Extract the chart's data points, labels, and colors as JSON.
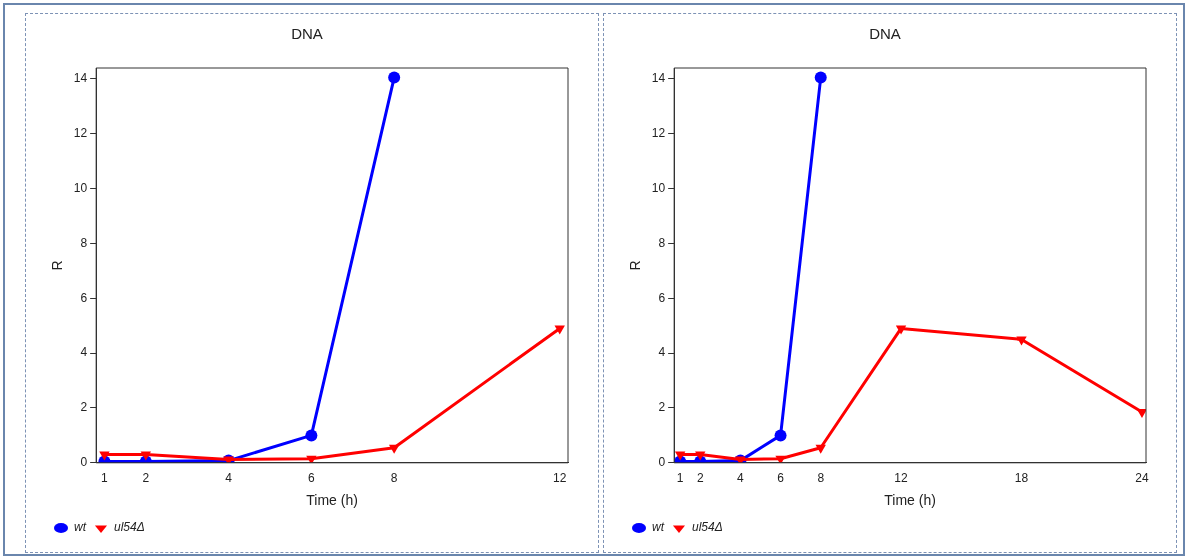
{
  "chart_data": [
    {
      "type": "line",
      "title": "DNA",
      "xlabel": "Time (h)",
      "ylabel": "R",
      "x": [
        1,
        2,
        4,
        6,
        8,
        12
      ],
      "xlim": [
        0.8,
        12.2
      ],
      "xticks": [
        1,
        2,
        4,
        6,
        8,
        12
      ],
      "ylim": [
        0,
        14.4
      ],
      "yticks": [
        0,
        2,
        4,
        6,
        8,
        10,
        12,
        14
      ],
      "grid": false,
      "legend": "bottom left",
      "series": [
        {
          "name": "wt",
          "color": "#0000ff",
          "marker": "circle",
          "values": [
            0.05,
            0.05,
            0.08,
            1.0,
            14.05,
            null
          ]
        },
        {
          "name": "ul54Δ",
          "color": "#ff0000",
          "marker": "triangle-down",
          "values": [
            0.3,
            0.3,
            0.12,
            0.15,
            0.55,
            4.9
          ]
        }
      ]
    },
    {
      "type": "line",
      "title": "DNA",
      "xlabel": "Time (h)",
      "ylabel": "R",
      "x": [
        1,
        2,
        4,
        6,
        8,
        12,
        18,
        24
      ],
      "xlim": [
        0.7,
        24.2
      ],
      "xticks": [
        1,
        2,
        4,
        6,
        8,
        12,
        18,
        24
      ],
      "ylim": [
        0,
        14.4
      ],
      "yticks": [
        0,
        2,
        4,
        6,
        8,
        10,
        12,
        14
      ],
      "grid": false,
      "legend": "bottom left",
      "series": [
        {
          "name": "wt",
          "color": "#0000ff",
          "marker": "circle",
          "values": [
            0.05,
            0.05,
            0.08,
            1.0,
            14.05,
            null,
            null,
            null
          ]
        },
        {
          "name": "ul54Δ",
          "color": "#ff0000",
          "marker": "triangle-down",
          "values": [
            0.3,
            0.3,
            0.12,
            0.15,
            0.55,
            4.9,
            4.5,
            1.85
          ]
        }
      ]
    }
  ]
}
